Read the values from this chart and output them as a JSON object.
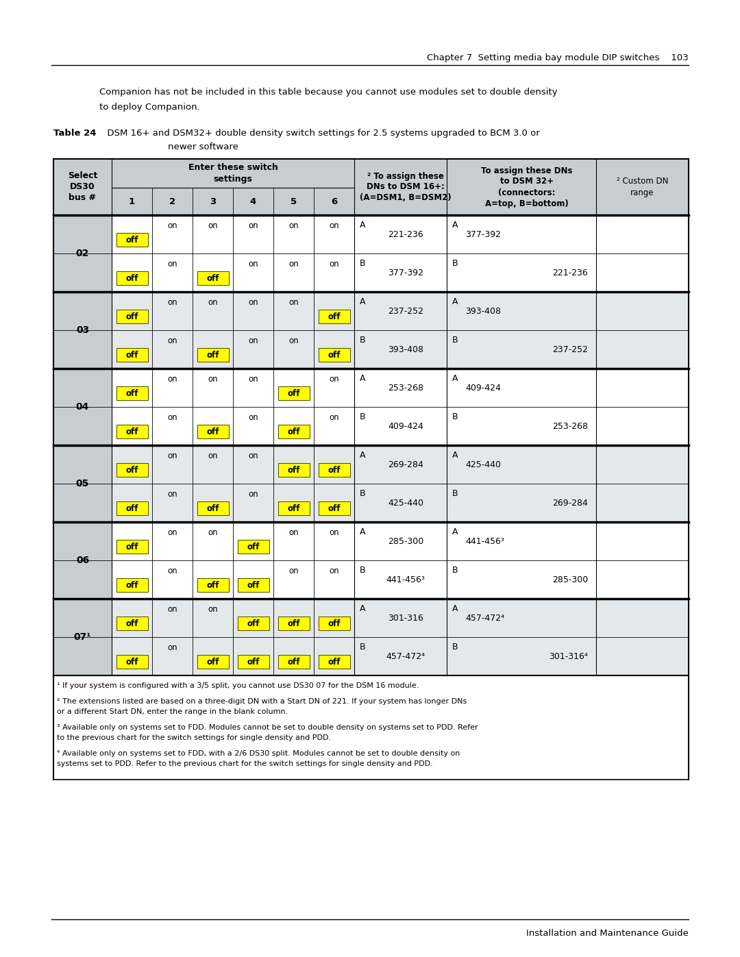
{
  "page_header": "Chapter 7  Setting media bay module DIP switches    103",
  "page_footer": "Installation and Maintenance Guide",
  "intro_text_line1": "Companion has not be included in this table because you cannot use modules set to double density",
  "intro_text_line2": "to deploy Companion.",
  "table_caption_bold": "Table 24",
  "table_caption_rest": "  DSM 16+ and DSM32+ double density switch settings for 2.5 systems upgraded to BCM 3.0 or",
  "table_caption_line2": "newer software",
  "rows": [
    {
      "bus": "02",
      "sub": "A",
      "sw": [
        "off",
        "on",
        "on",
        "on",
        "on",
        "on"
      ],
      "dsm16": "221-236",
      "dsm32_left": "377-392",
      "dsm32_right": "",
      "bg": "white"
    },
    {
      "bus": "",
      "sub": "B",
      "sw": [
        "off",
        "on",
        "off",
        "on",
        "on",
        "on"
      ],
      "dsm16": "377-392",
      "dsm32_left": "",
      "dsm32_right": "221-236",
      "bg": "white"
    },
    {
      "bus": "03",
      "sub": "A",
      "sw": [
        "off",
        "on",
        "on",
        "on",
        "on",
        "off"
      ],
      "dsm16": "237-252",
      "dsm32_left": "393-408",
      "dsm32_right": "",
      "bg": "gray"
    },
    {
      "bus": "",
      "sub": "B",
      "sw": [
        "off",
        "on",
        "off",
        "on",
        "on",
        "off"
      ],
      "dsm16": "393-408",
      "dsm32_left": "",
      "dsm32_right": "237-252",
      "bg": "gray"
    },
    {
      "bus": "04",
      "sub": "A",
      "sw": [
        "off",
        "on",
        "on",
        "on",
        "off",
        "on"
      ],
      "dsm16": "253-268",
      "dsm32_left": "409-424",
      "dsm32_right": "",
      "bg": "white"
    },
    {
      "bus": "",
      "sub": "B",
      "sw": [
        "off",
        "on",
        "off",
        "on",
        "off",
        "on"
      ],
      "dsm16": "409-424",
      "dsm32_left": "",
      "dsm32_right": "253-268",
      "bg": "white"
    },
    {
      "bus": "05",
      "sub": "A",
      "sw": [
        "off",
        "on",
        "on",
        "on",
        "off",
        "off"
      ],
      "dsm16": "269-284",
      "dsm32_left": "425-440",
      "dsm32_right": "",
      "bg": "gray"
    },
    {
      "bus": "",
      "sub": "B",
      "sw": [
        "off",
        "on",
        "off",
        "on",
        "off",
        "off"
      ],
      "dsm16": "425-440",
      "dsm32_left": "",
      "dsm32_right": "269-284",
      "bg": "gray"
    },
    {
      "bus": "06",
      "sub": "A",
      "sw": [
        "off",
        "on",
        "on",
        "off",
        "on",
        "on"
      ],
      "dsm16": "285-300",
      "dsm32_left": "441-456³",
      "dsm32_right": "",
      "bg": "white"
    },
    {
      "bus": "",
      "sub": "B",
      "sw": [
        "off",
        "on",
        "off",
        "off",
        "on",
        "on"
      ],
      "dsm16": "441-456³",
      "dsm32_left": "",
      "dsm32_right": "285-300",
      "bg": "white"
    },
    {
      "bus": "07¹",
      "sub": "A",
      "sw": [
        "off",
        "on",
        "on",
        "off",
        "off",
        "off"
      ],
      "dsm16": "301-316",
      "dsm32_left": "457-472⁴",
      "dsm32_right": "",
      "bg": "gray"
    },
    {
      "bus": "",
      "sub": "B",
      "sw": [
        "off",
        "on",
        "off",
        "off",
        "off",
        "off"
      ],
      "dsm16": "457-472⁴",
      "dsm32_left": "",
      "dsm32_right": "301-316⁴",
      "bg": "gray"
    }
  ],
  "footnotes": [
    "¹ If your system is configured with a 3/5 split, you cannot use DS30 07 for the DSM 16 module.",
    "² The extensions listed are based on a three-digit DN with a Start DN of 221. If your system has longer DNs or a different Start DN, enter the range in the blank column.",
    "³ Available only on systems set to FDD. Modules cannot be set to double density on systems set to PDD. Refer to the previous chart for the switch settings for single density and PDD.",
    "⁴ Available only on systems set to FDD, with a 2/6 DS30 split. Modules cannot be set to double density on systems set to PDD. Refer to the previous chart for the switch settings for single density and PDD."
  ],
  "yellow": "#FFFF00",
  "header_gray": "#C8CDD0",
  "row_gray": "#E4E8EA",
  "select_gray": "#C8CDD0"
}
